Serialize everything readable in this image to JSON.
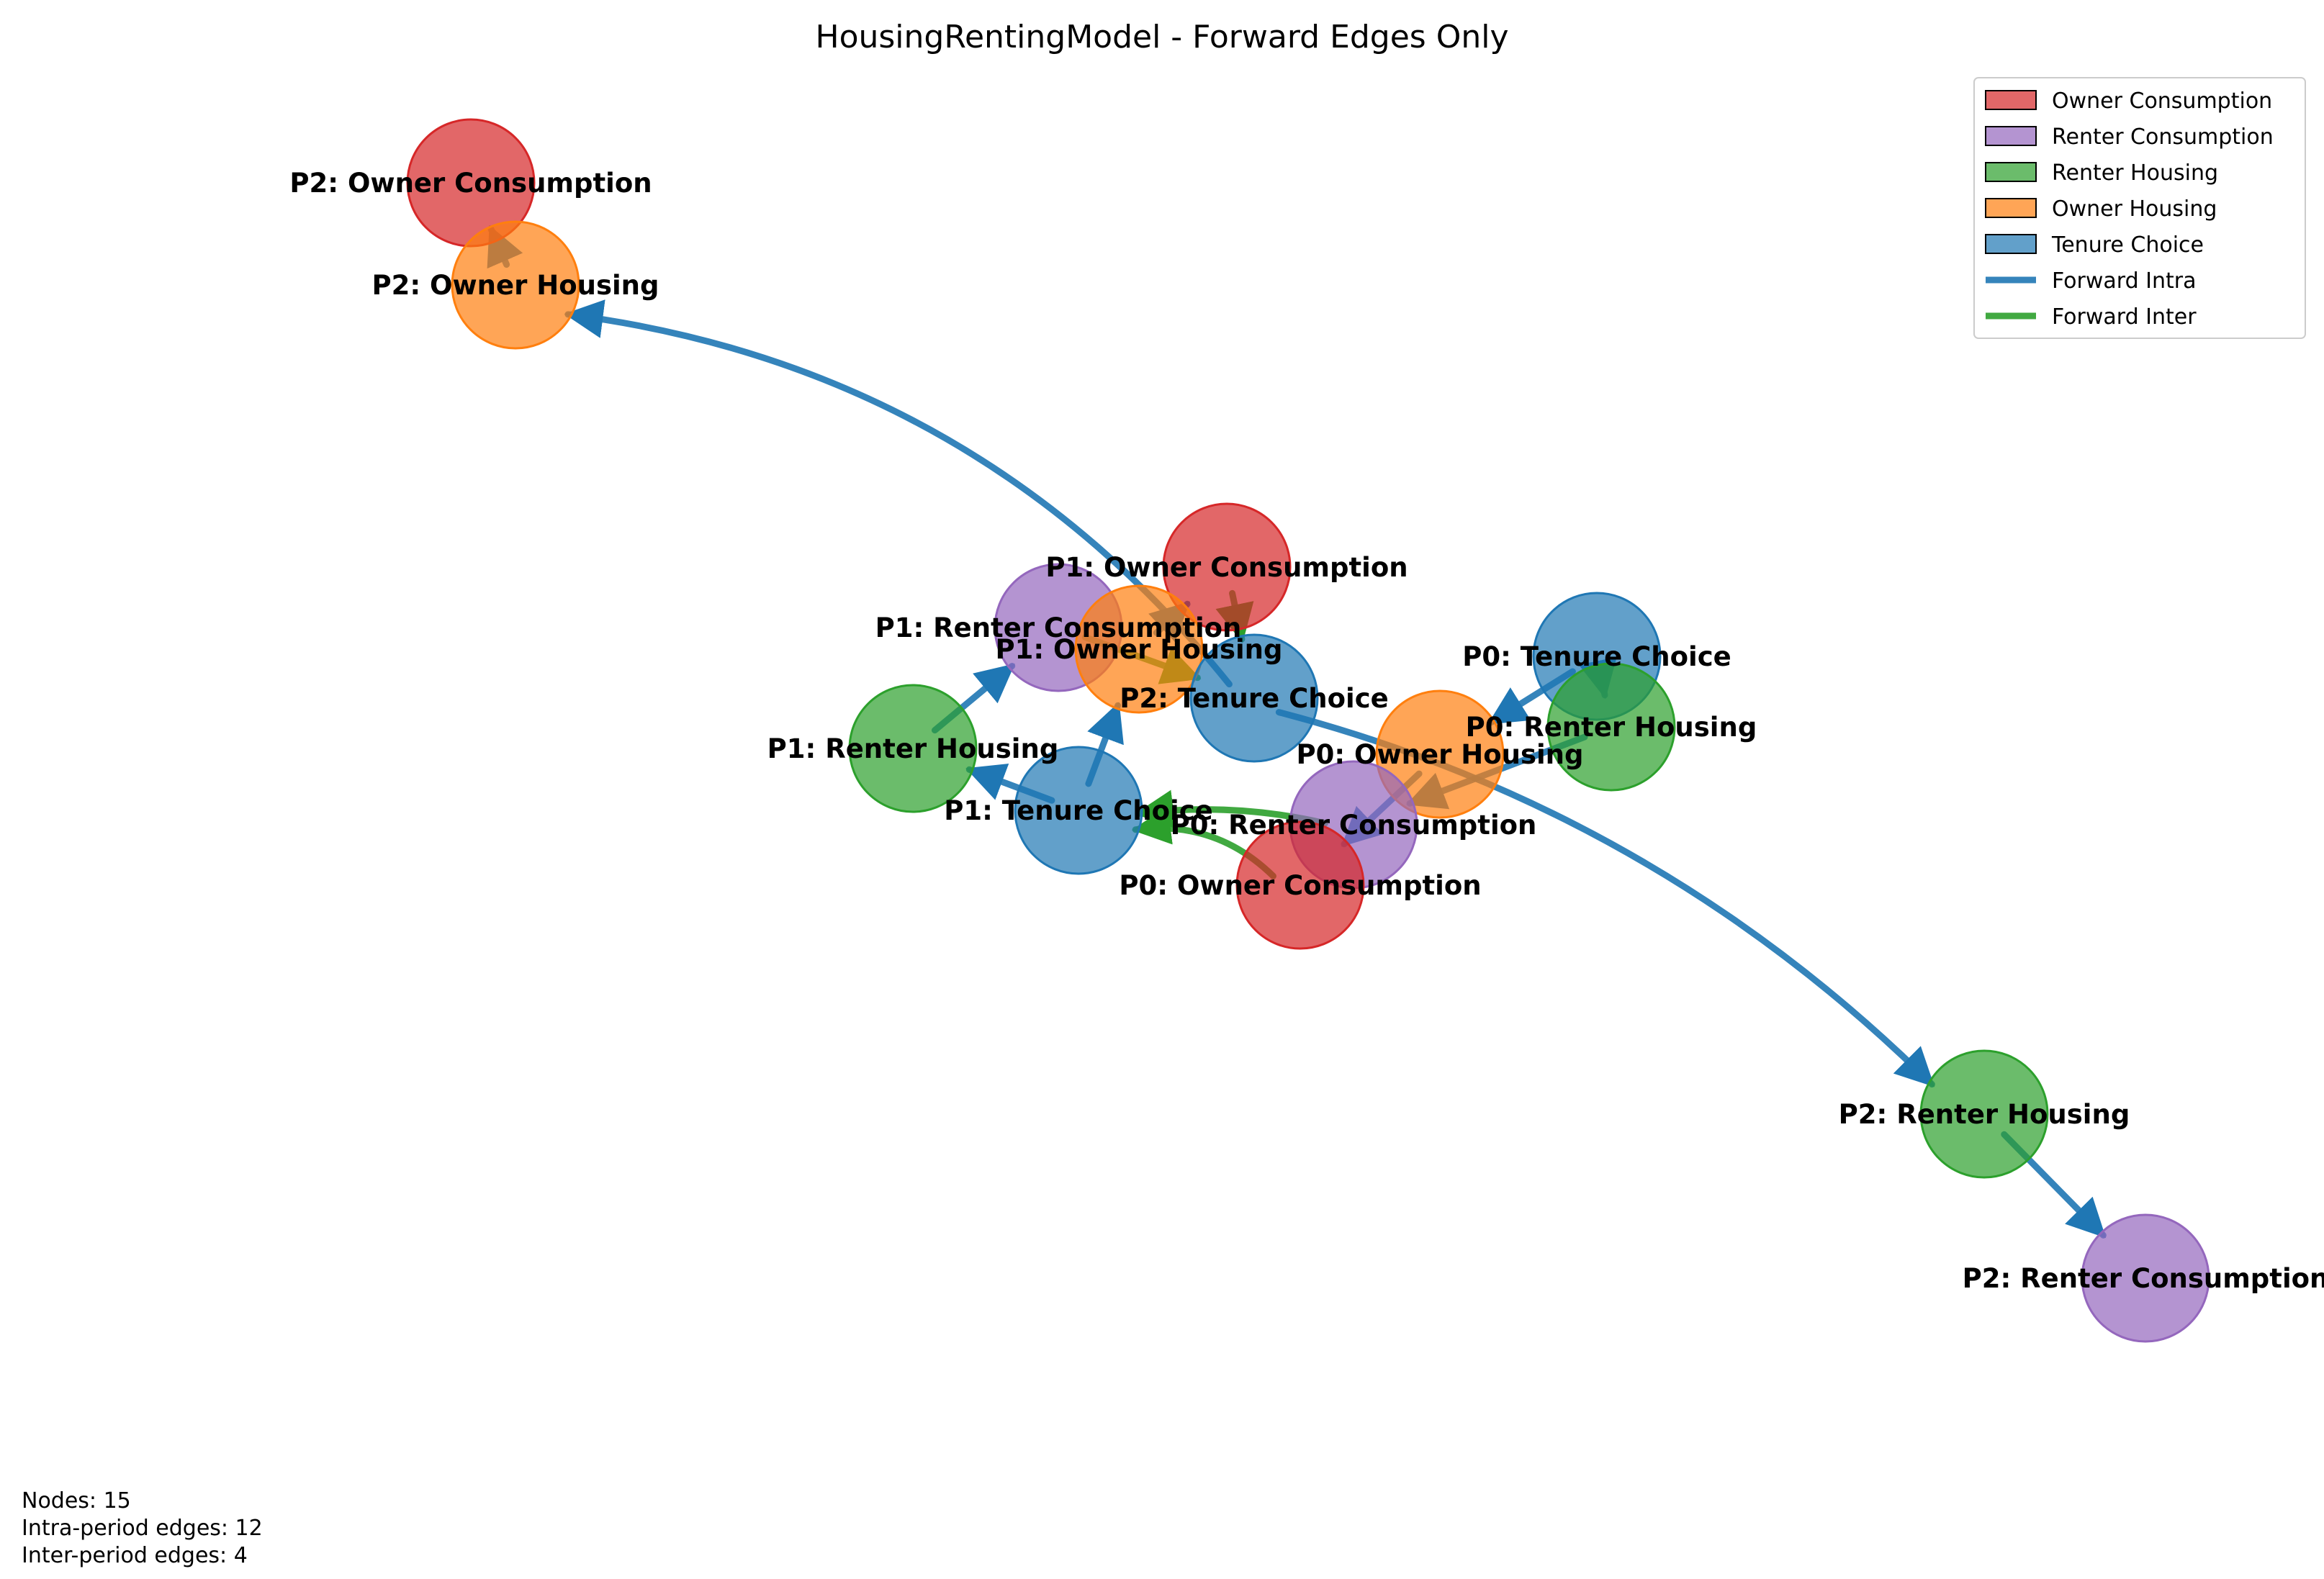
{
  "title": "HousingRentingModel - Forward Edges Only",
  "colors": {
    "owner_consumption": "#d62728",
    "renter_consumption": "#9467bd",
    "renter_housing": "#2ca02c",
    "owner_housing": "#ff7f0e",
    "tenure_choice": "#1f77b4",
    "forward_intra": "#1f77b4",
    "forward_inter": "#2ca02c"
  },
  "legend": [
    {
      "label": "Owner Consumption",
      "kind": "patch",
      "color_key": "owner_consumption"
    },
    {
      "label": "Renter Consumption",
      "kind": "patch",
      "color_key": "renter_consumption"
    },
    {
      "label": "Renter Housing",
      "kind": "patch",
      "color_key": "renter_housing"
    },
    {
      "label": "Owner Housing",
      "kind": "patch",
      "color_key": "owner_housing"
    },
    {
      "label": "Tenure Choice",
      "kind": "patch",
      "color_key": "tenure_choice"
    },
    {
      "label": "Forward Intra",
      "kind": "line",
      "color_key": "forward_intra"
    },
    {
      "label": "Forward Inter",
      "kind": "line",
      "color_key": "forward_inter"
    }
  ],
  "nodes": [
    {
      "id": "p2_oc",
      "label": "P2: Owner Consumption",
      "color_key": "owner_consumption"
    },
    {
      "id": "p2_oh",
      "label": "P2: Owner Housing",
      "color_key": "owner_housing"
    },
    {
      "id": "p1_oc",
      "label": "P1: Owner Consumption",
      "color_key": "owner_consumption"
    },
    {
      "id": "p1_rc",
      "label": "P1: Renter Consumption",
      "color_key": "renter_consumption"
    },
    {
      "id": "p1_oh",
      "label": "P1: Owner Housing",
      "color_key": "owner_housing"
    },
    {
      "id": "p2_tc",
      "label": "P2: Tenure Choice",
      "color_key": "tenure_choice"
    },
    {
      "id": "p0_tc",
      "label": "P0: Tenure Choice",
      "color_key": "tenure_choice"
    },
    {
      "id": "p0_rh",
      "label": "P0: Renter Housing",
      "color_key": "renter_housing"
    },
    {
      "id": "p0_oh",
      "label": "P0: Owner Housing",
      "color_key": "owner_housing"
    },
    {
      "id": "p1_rh",
      "label": "P1: Renter Housing",
      "color_key": "renter_housing"
    },
    {
      "id": "p1_tc",
      "label": "P1: Tenure Choice",
      "color_key": "tenure_choice"
    },
    {
      "id": "p0_rc",
      "label": "P0: Renter Consumption",
      "color_key": "renter_consumption"
    },
    {
      "id": "p0_oc",
      "label": "P0: Owner Consumption",
      "color_key": "owner_consumption"
    },
    {
      "id": "p2_rh",
      "label": "P2: Renter Housing",
      "color_key": "renter_housing"
    },
    {
      "id": "p2_rc",
      "label": "P2: Renter Consumption",
      "color_key": "renter_consumption"
    }
  ],
  "edges": [
    {
      "from": "p2_oh",
      "to": "p2_oc",
      "type": "intra"
    },
    {
      "from": "p2_tc",
      "to": "p2_oh",
      "type": "intra"
    },
    {
      "from": "p2_tc",
      "to": "p2_rh",
      "type": "intra"
    },
    {
      "from": "p2_rh",
      "to": "p2_rc",
      "type": "intra"
    },
    {
      "from": "p1_oh",
      "to": "p1_oc",
      "type": "intra"
    },
    {
      "from": "p1_tc",
      "to": "p1_oh",
      "type": "intra"
    },
    {
      "from": "p1_tc",
      "to": "p1_rh",
      "type": "intra"
    },
    {
      "from": "p1_rh",
      "to": "p1_rc",
      "type": "intra"
    },
    {
      "from": "p0_tc",
      "to": "p0_oh",
      "type": "intra"
    },
    {
      "from": "p0_tc",
      "to": "p0_rh",
      "type": "intra"
    },
    {
      "from": "p0_oh",
      "to": "p0_oc",
      "type": "intra"
    },
    {
      "from": "p0_rh",
      "to": "p0_rc",
      "type": "intra"
    },
    {
      "from": "p0_oc",
      "to": "p1_tc",
      "type": "inter"
    },
    {
      "from": "p0_rc",
      "to": "p1_tc",
      "type": "inter"
    },
    {
      "from": "p1_oc",
      "to": "p2_tc",
      "type": "inter"
    },
    {
      "from": "p1_rc",
      "to": "p2_tc",
      "type": "inter"
    }
  ],
  "stats": {
    "nodes": "Nodes: 15",
    "intra": "Intra-period edges: 12",
    "inter": "Inter-period edges: 4"
  }
}
